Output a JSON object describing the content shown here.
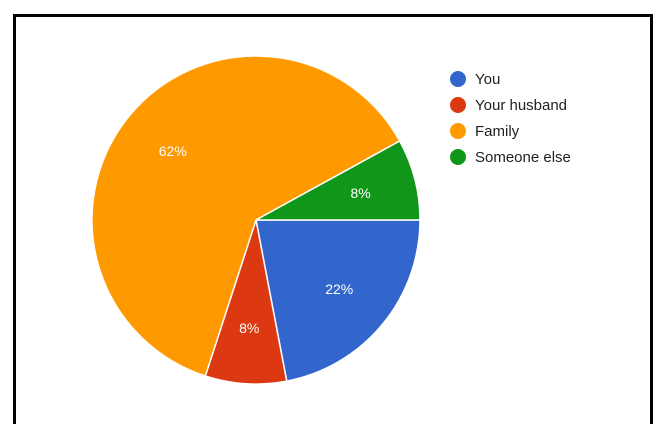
{
  "chart_data": {
    "type": "pie",
    "slices": [
      {
        "label": "You",
        "value": 22,
        "display": "22%",
        "color": "#3366cc"
      },
      {
        "label": "Your husband",
        "value": 8,
        "display": "8%",
        "color": "#dc3912"
      },
      {
        "label": "Family",
        "value": 62,
        "display": "62%",
        "color": "#ff9900"
      },
      {
        "label": "Someone else",
        "value": 8,
        "display": "8%",
        "color": "#109618"
      }
    ],
    "legend": [
      "You",
      "Your husband",
      "Family",
      "Someone else"
    ],
    "legend_position": "right",
    "title": "",
    "start_angle_deg": 0,
    "direction": "clockwise"
  }
}
